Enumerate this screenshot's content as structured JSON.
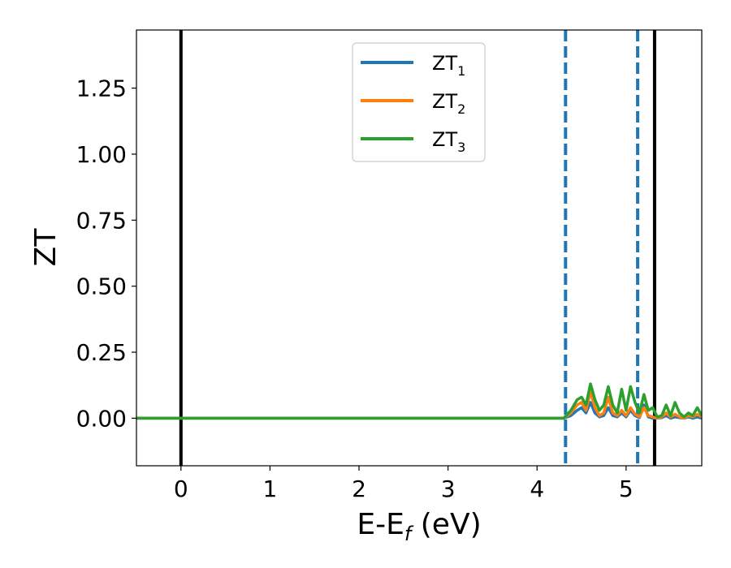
{
  "chart_data": {
    "type": "line",
    "xlabel": "E-E",
    "xlabel_sub": "f",
    "xlabel_unit": " (eV)",
    "ylabel": "ZT",
    "xlim": [
      -0.5,
      5.85
    ],
    "ylim": [
      -0.18,
      1.47
    ],
    "xticks": [
      0,
      1,
      2,
      3,
      4,
      5
    ],
    "xtick_labels": [
      "0",
      "1",
      "2",
      "3",
      "4",
      "5"
    ],
    "yticks": [
      0.0,
      0.25,
      0.5,
      0.75,
      1.0,
      1.25
    ],
    "ytick_labels": [
      "0.00",
      "0.25",
      "0.50",
      "0.75",
      "1.00",
      "1.25"
    ],
    "grid": false,
    "legend_position": "top-center",
    "vlines": [
      {
        "x": 0.0,
        "style": "solid",
        "color": "#000000"
      },
      {
        "x": 5.32,
        "style": "solid",
        "color": "#000000"
      },
      {
        "x": 4.32,
        "style": "dashed",
        "color": "#1f77b4"
      },
      {
        "x": 5.13,
        "style": "dashed",
        "color": "#1f77b4"
      }
    ],
    "series": [
      {
        "name": "ZT",
        "name_sub": "1",
        "color": "#1f77b4",
        "x": [
          -0.5,
          4.3,
          4.38,
          4.45,
          4.5,
          4.55,
          4.6,
          4.65,
          4.7,
          4.75,
          4.8,
          4.85,
          4.9,
          4.95,
          5.0,
          5.05,
          5.1,
          5.15,
          5.2,
          5.25,
          5.3,
          5.35,
          5.4,
          5.45,
          5.5,
          5.55,
          5.6,
          5.65,
          5.7,
          5.75,
          5.8,
          5.85
        ],
        "y": [
          0.0,
          0.0,
          0.01,
          0.03,
          0.04,
          0.02,
          0.06,
          0.02,
          0.005,
          0.01,
          0.04,
          0.01,
          0.005,
          0.02,
          0.005,
          0.03,
          0.01,
          0.002,
          0.05,
          0.005,
          0.0,
          0.0,
          0.002,
          0.01,
          0.0,
          0.005,
          0.002,
          0.0,
          0.005,
          0.0,
          0.005,
          0.0
        ]
      },
      {
        "name": "ZT",
        "name_sub": "2",
        "color": "#ff7f0e",
        "x": [
          -0.5,
          4.3,
          4.38,
          4.45,
          4.5,
          4.55,
          4.6,
          4.65,
          4.7,
          4.75,
          4.8,
          4.85,
          4.9,
          4.95,
          5.0,
          5.05,
          5.1,
          5.15,
          5.2,
          5.25,
          5.3,
          5.35,
          5.4,
          5.45,
          5.5,
          5.55,
          5.6,
          5.65,
          5.7,
          5.75,
          5.8,
          5.85
        ],
        "y": [
          0.0,
          0.0,
          0.02,
          0.05,
          0.06,
          0.03,
          0.1,
          0.04,
          0.01,
          0.02,
          0.08,
          0.02,
          0.01,
          0.03,
          0.01,
          0.04,
          0.015,
          0.005,
          0.04,
          0.01,
          0.005,
          0.0,
          0.005,
          0.02,
          0.005,
          0.015,
          0.005,
          0.0,
          0.01,
          0.005,
          0.015,
          0.005
        ]
      },
      {
        "name": "ZT",
        "name_sub": "3",
        "color": "#2ca02c",
        "x": [
          -0.5,
          4.3,
          4.38,
          4.45,
          4.5,
          4.55,
          4.6,
          4.65,
          4.7,
          4.75,
          4.8,
          4.85,
          4.9,
          4.95,
          5.0,
          5.05,
          5.1,
          5.15,
          5.2,
          5.25,
          5.3,
          5.35,
          5.4,
          5.45,
          5.5,
          5.55,
          5.6,
          5.65,
          5.7,
          5.75,
          5.8,
          5.85
        ],
        "y": [
          0.0,
          0.0,
          0.03,
          0.07,
          0.08,
          0.05,
          0.13,
          0.07,
          0.03,
          0.05,
          0.12,
          0.05,
          0.02,
          0.11,
          0.03,
          0.12,
          0.06,
          0.02,
          0.09,
          0.03,
          0.04,
          0.005,
          0.01,
          0.05,
          0.01,
          0.06,
          0.02,
          0.005,
          0.02,
          0.01,
          0.04,
          0.01
        ]
      }
    ]
  }
}
